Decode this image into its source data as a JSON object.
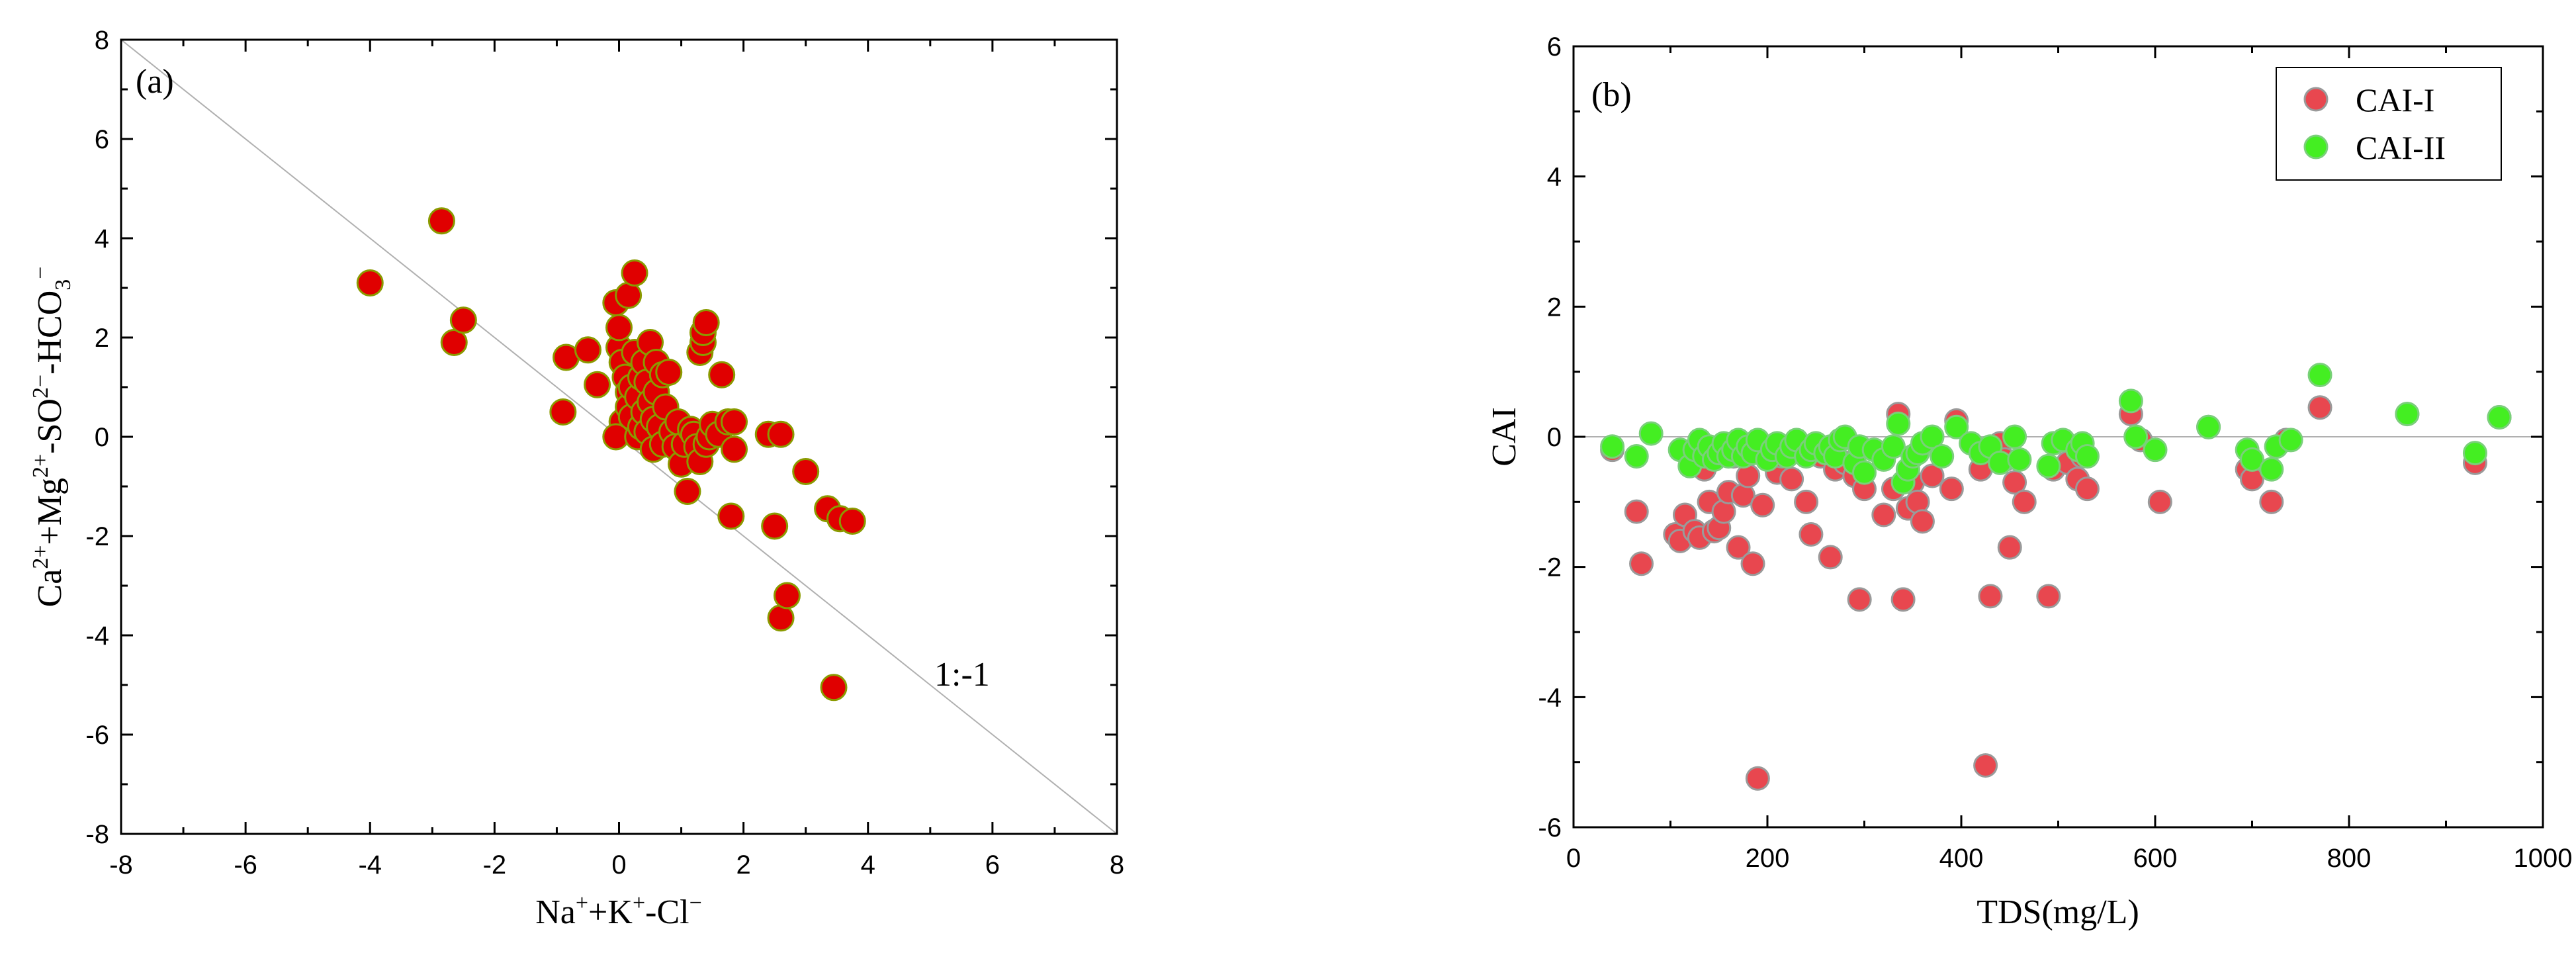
{
  "chart_data": [
    {
      "type": "scatter",
      "panel_label": "(a)",
      "xlabel": "Na⁺+K⁺-Cl⁻",
      "ylabel": "Ca²⁺+Mg²⁺-SO²⁻-HCO₃⁻",
      "xlim": [
        -8,
        8
      ],
      "ylim": [
        -8,
        8
      ],
      "x_ticks": [
        -8,
        -6,
        -4,
        -2,
        0,
        2,
        4,
        6,
        8
      ],
      "y_ticks": [
        -8,
        -6,
        -4,
        -2,
        0,
        2,
        4,
        6,
        8
      ],
      "tick_labels_x": [
        "-8",
        "-6",
        "-4",
        "-2",
        "0",
        "2",
        "4",
        "6",
        "8"
      ],
      "tick_labels_y": [
        "-8",
        "-6",
        "-4",
        "-2",
        "0",
        "2",
        "4",
        "6",
        "8"
      ],
      "reference_line": {
        "label": "1:-1",
        "slope": -1,
        "intercept": 0,
        "color": "#b0b0b0"
      },
      "marker_fill": "#e00000",
      "marker_edge": "#8a9a00",
      "series": [
        {
          "name": "samples",
          "points": [
            [
              -4.0,
              3.1
            ],
            [
              -2.85,
              4.35
            ],
            [
              -2.65,
              1.9
            ],
            [
              -2.5,
              2.35
            ],
            [
              -0.9,
              0.5
            ],
            [
              -0.85,
              1.6
            ],
            [
              -0.5,
              1.75
            ],
            [
              -0.35,
              1.05
            ],
            [
              -0.05,
              2.7
            ],
            [
              0.0,
              1.8
            ],
            [
              0.0,
              2.2
            ],
            [
              0.05,
              1.5
            ],
            [
              0.05,
              0.3
            ],
            [
              -0.05,
              0.0
            ],
            [
              0.1,
              1.2
            ],
            [
              0.15,
              0.9
            ],
            [
              0.15,
              0.6
            ],
            [
              0.15,
              2.85
            ],
            [
              0.2,
              0.4
            ],
            [
              0.2,
              1.0
            ],
            [
              0.25,
              3.3
            ],
            [
              0.25,
              1.7
            ],
            [
              0.3,
              0.0
            ],
            [
              0.3,
              0.8
            ],
            [
              0.35,
              0.2
            ],
            [
              0.35,
              1.2
            ],
            [
              0.4,
              0.5
            ],
            [
              0.4,
              1.5
            ],
            [
              0.45,
              0.1
            ],
            [
              0.45,
              1.1
            ],
            [
              0.5,
              0.7
            ],
            [
              0.5,
              1.9
            ],
            [
              0.55,
              0.35
            ],
            [
              0.55,
              -0.25
            ],
            [
              0.6,
              1.5
            ],
            [
              0.6,
              0.9
            ],
            [
              0.65,
              0.2
            ],
            [
              0.7,
              -0.15
            ],
            [
              0.7,
              1.25
            ],
            [
              0.75,
              0.6
            ],
            [
              0.8,
              1.3
            ],
            [
              0.85,
              0.1
            ],
            [
              0.9,
              -0.2
            ],
            [
              0.95,
              0.3
            ],
            [
              1.0,
              -0.55
            ],
            [
              1.05,
              -0.15
            ],
            [
              1.1,
              -1.1
            ],
            [
              1.15,
              0.15
            ],
            [
              1.2,
              0.05
            ],
            [
              1.25,
              -0.2
            ],
            [
              1.3,
              -0.5
            ],
            [
              1.3,
              1.7
            ],
            [
              1.35,
              1.9
            ],
            [
              1.35,
              2.1
            ],
            [
              1.4,
              2.3
            ],
            [
              1.4,
              -0.15
            ],
            [
              1.45,
              0.0
            ],
            [
              1.5,
              0.25
            ],
            [
              1.6,
              0.05
            ],
            [
              1.65,
              1.25
            ],
            [
              1.75,
              0.3
            ],
            [
              1.8,
              -1.6
            ],
            [
              1.85,
              -0.25
            ],
            [
              1.85,
              0.3
            ],
            [
              2.4,
              0.05
            ],
            [
              2.5,
              -1.8
            ],
            [
              2.6,
              0.05
            ],
            [
              2.6,
              -3.65
            ],
            [
              2.7,
              -3.2
            ],
            [
              3.0,
              -0.7
            ],
            [
              3.35,
              -1.45
            ],
            [
              3.45,
              -5.05
            ],
            [
              3.55,
              -1.65
            ],
            [
              3.75,
              -1.7
            ]
          ]
        }
      ]
    },
    {
      "type": "scatter",
      "panel_label": "(b)",
      "xlabel": "TDS(mg/L)",
      "ylabel": "CAI",
      "xlim": [
        0,
        1000
      ],
      "ylim": [
        -6,
        6
      ],
      "x_ticks": [
        0,
        200,
        400,
        600,
        800,
        1000
      ],
      "y_ticks": [
        -6,
        -4,
        -2,
        0,
        2,
        4,
        6
      ],
      "tick_labels_x": [
        "0",
        "200",
        "400",
        "600",
        "800",
        "1000"
      ],
      "tick_labels_y": [
        "-6",
        "-4",
        "-2",
        "0",
        "2",
        "4",
        "6"
      ],
      "reference_line": {
        "y": 0,
        "color": "#b0b0b0"
      },
      "legend_position": "top-right",
      "series": [
        {
          "name": "CAI-I",
          "color": "#e8474f",
          "edge": "#9a9a9a",
          "points": [
            [
              40,
              -0.2
            ],
            [
              65,
              -1.15
            ],
            [
              70,
              -1.95
            ],
            [
              105,
              -1.5
            ],
            [
              110,
              -1.6
            ],
            [
              115,
              -1.2
            ],
            [
              125,
              -1.45
            ],
            [
              130,
              -1.55
            ],
            [
              135,
              -0.5
            ],
            [
              140,
              -1.0
            ],
            [
              145,
              -1.45
            ],
            [
              150,
              -1.4
            ],
            [
              155,
              -1.15
            ],
            [
              160,
              -0.85
            ],
            [
              165,
              -0.3
            ],
            [
              170,
              -1.7
            ],
            [
              175,
              -0.9
            ],
            [
              180,
              -0.6
            ],
            [
              185,
              -1.95
            ],
            [
              190,
              -5.25
            ],
            [
              195,
              -1.05
            ],
            [
              210,
              -0.55
            ],
            [
              215,
              -0.3
            ],
            [
              225,
              -0.65
            ],
            [
              240,
              -1.0
            ],
            [
              245,
              -1.5
            ],
            [
              255,
              -0.3
            ],
            [
              265,
              -1.85
            ],
            [
              270,
              -0.5
            ],
            [
              280,
              -0.4
            ],
            [
              290,
              -0.6
            ],
            [
              295,
              -2.5
            ],
            [
              300,
              -0.8
            ],
            [
              320,
              -1.2
            ],
            [
              330,
              -0.8
            ],
            [
              335,
              0.35
            ],
            [
              340,
              -2.5
            ],
            [
              345,
              -1.1
            ],
            [
              350,
              -0.7
            ],
            [
              355,
              -1.0
            ],
            [
              360,
              -1.3
            ],
            [
              370,
              -0.6
            ],
            [
              390,
              -0.8
            ],
            [
              395,
              0.25
            ],
            [
              420,
              -0.5
            ],
            [
              425,
              -5.05
            ],
            [
              430,
              -2.45
            ],
            [
              440,
              -0.1
            ],
            [
              445,
              -0.35
            ],
            [
              450,
              -1.7
            ],
            [
              455,
              -0.7
            ],
            [
              465,
              -1.0
            ],
            [
              490,
              -2.45
            ],
            [
              495,
              -0.5
            ],
            [
              510,
              -0.4
            ],
            [
              520,
              -0.65
            ],
            [
              525,
              -0.3
            ],
            [
              530,
              -0.8
            ],
            [
              575,
              0.35
            ],
            [
              585,
              -0.05
            ],
            [
              605,
              -1.0
            ],
            [
              655,
              0.15
            ],
            [
              695,
              -0.5
            ],
            [
              700,
              -0.65
            ],
            [
              720,
              -1.0
            ],
            [
              735,
              -0.05
            ],
            [
              770,
              0.45
            ],
            [
              860,
              0.35
            ],
            [
              930,
              -0.4
            ],
            [
              955,
              0.3
            ]
          ]
        },
        {
          "name": "CAI-II",
          "color": "#44ee22",
          "edge": "#7ad07a",
          "points": [
            [
              40,
              -0.15
            ],
            [
              65,
              -0.3
            ],
            [
              80,
              0.05
            ],
            [
              110,
              -0.2
            ],
            [
              120,
              -0.45
            ],
            [
              125,
              -0.2
            ],
            [
              130,
              -0.05
            ],
            [
              135,
              -0.3
            ],
            [
              140,
              -0.15
            ],
            [
              145,
              -0.35
            ],
            [
              150,
              -0.25
            ],
            [
              155,
              -0.1
            ],
            [
              160,
              -0.3
            ],
            [
              165,
              -0.2
            ],
            [
              170,
              -0.05
            ],
            [
              175,
              -0.3
            ],
            [
              180,
              -0.15
            ],
            [
              185,
              -0.25
            ],
            [
              190,
              -0.05
            ],
            [
              200,
              -0.35
            ],
            [
              205,
              -0.2
            ],
            [
              210,
              -0.1
            ],
            [
              220,
              -0.3
            ],
            [
              225,
              -0.15
            ],
            [
              230,
              -0.05
            ],
            [
              240,
              -0.3
            ],
            [
              245,
              -0.2
            ],
            [
              250,
              -0.1
            ],
            [
              260,
              -0.25
            ],
            [
              265,
              -0.15
            ],
            [
              270,
              -0.3
            ],
            [
              275,
              -0.05
            ],
            [
              280,
              0.0
            ],
            [
              290,
              -0.4
            ],
            [
              295,
              -0.15
            ],
            [
              300,
              -0.55
            ],
            [
              310,
              -0.2
            ],
            [
              320,
              -0.35
            ],
            [
              330,
              -0.15
            ],
            [
              335,
              0.2
            ],
            [
              340,
              -0.7
            ],
            [
              345,
              -0.5
            ],
            [
              350,
              -0.3
            ],
            [
              355,
              -0.25
            ],
            [
              360,
              -0.1
            ],
            [
              370,
              0.0
            ],
            [
              380,
              -0.3
            ],
            [
              395,
              0.15
            ],
            [
              410,
              -0.1
            ],
            [
              420,
              -0.25
            ],
            [
              430,
              -0.15
            ],
            [
              440,
              -0.4
            ],
            [
              455,
              0.0
            ],
            [
              460,
              -0.35
            ],
            [
              490,
              -0.45
            ],
            [
              495,
              -0.1
            ],
            [
              505,
              -0.05
            ],
            [
              520,
              -0.2
            ],
            [
              525,
              -0.1
            ],
            [
              530,
              -0.3
            ],
            [
              575,
              0.55
            ],
            [
              580,
              0.0
            ],
            [
              600,
              -0.2
            ],
            [
              655,
              0.15
            ],
            [
              695,
              -0.2
            ],
            [
              700,
              -0.35
            ],
            [
              720,
              -0.5
            ],
            [
              725,
              -0.15
            ],
            [
              740,
              -0.05
            ],
            [
              770,
              0.95
            ],
            [
              860,
              0.35
            ],
            [
              930,
              -0.25
            ],
            [
              955,
              0.3
            ]
          ]
        }
      ]
    }
  ]
}
